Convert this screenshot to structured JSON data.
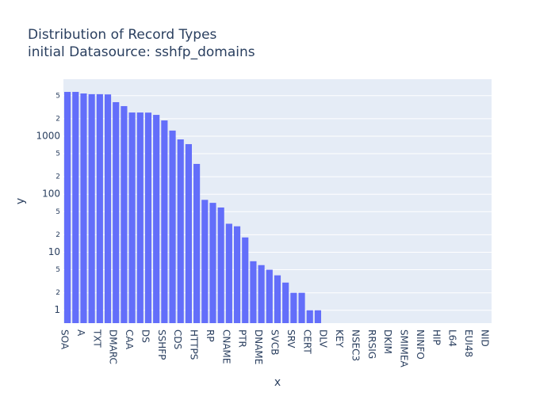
{
  "chart_data": {
    "type": "bar",
    "title": "Distribution of Record Types",
    "subtitle": "initial Datasource: sshfp_domains",
    "x_label": "x",
    "y_label": "y",
    "color": "#636efa",
    "log_y": true,
    "grid": true,
    "categories": [
      "SOA",
      null,
      "A",
      null,
      "TXT",
      null,
      "DMARC",
      null,
      "CAA",
      null,
      "DS",
      null,
      "SSHFP",
      null,
      "CDS",
      null,
      "HTTPS",
      null,
      "RP",
      null,
      "CNAME",
      null,
      "PTR",
      null,
      "DNAME",
      null,
      "SVCB",
      null,
      "SRV",
      null,
      "CERT",
      null,
      "DLV",
      null,
      "KEY",
      null,
      "NSEC3",
      null,
      "RRSIG",
      null,
      "DKIM",
      null,
      "SMIMEA",
      null,
      "NINFO",
      null,
      "HIP",
      null,
      "L64",
      null,
      "EUI48",
      null,
      "NID"
    ],
    "values": [
      5800,
      5800,
      5450,
      5300,
      5300,
      5250,
      3860,
      3300,
      2560,
      2560,
      2550,
      2330,
      1870,
      1250,
      880,
      730,
      333,
      80,
      71,
      59,
      31,
      28,
      18,
      7,
      6,
      5,
      4,
      3,
      2,
      2,
      1,
      1,
      null,
      null,
      null,
      null,
      null,
      null,
      null,
      null,
      null,
      null,
      null,
      null,
      null,
      null,
      null,
      null,
      null,
      null,
      null,
      null,
      null
    ],
    "ylim": [
      0.6,
      9600
    ],
    "yticks": [
      1,
      {
        "value": 2,
        "label": "2"
      },
      {
        "value": 5,
        "label": "5"
      },
      10,
      {
        "value": 20,
        "label": "2"
      },
      {
        "value": 50,
        "label": "5"
      },
      100,
      {
        "value": 200,
        "label": "2"
      },
      {
        "value": 500,
        "label": "5"
      },
      1000,
      {
        "value": 2000,
        "label": "2"
      },
      {
        "value": 5000,
        "label": "5"
      }
    ]
  }
}
